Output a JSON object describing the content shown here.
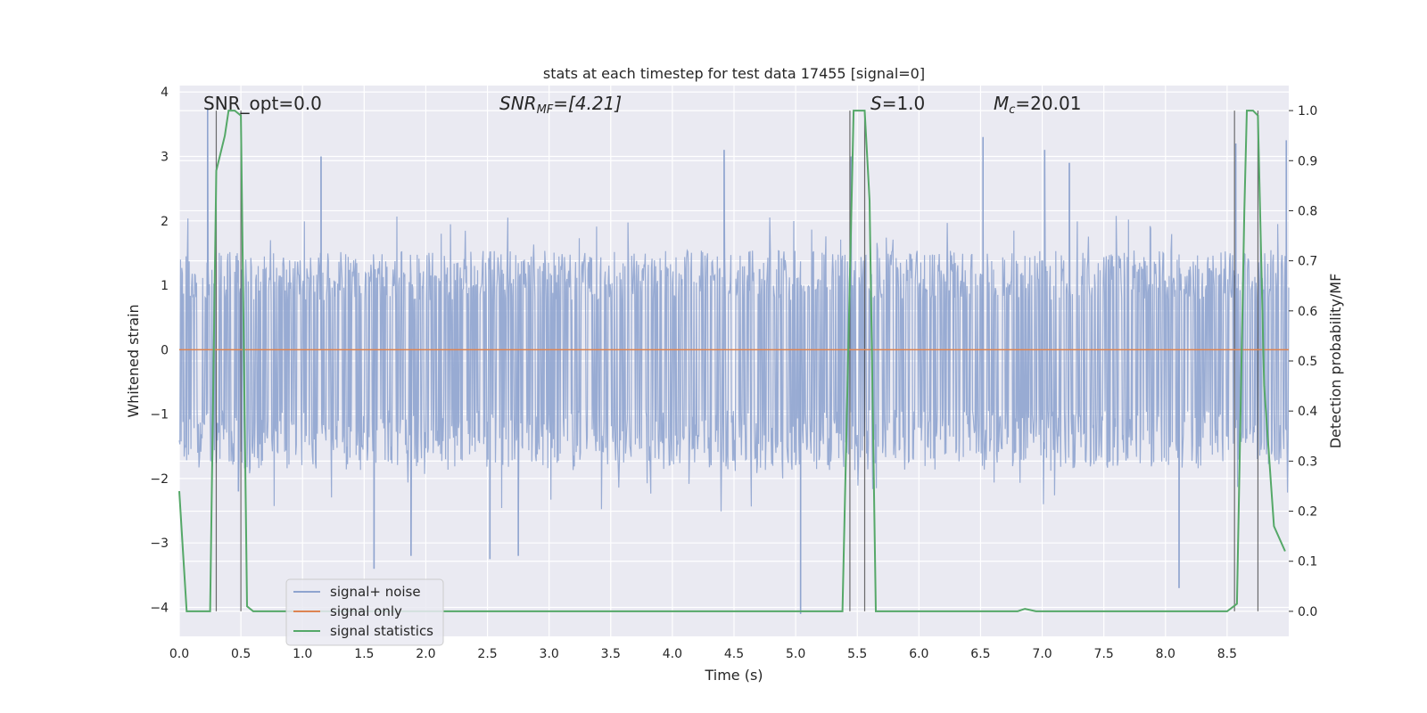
{
  "chart_data": {
    "type": "line",
    "title": "stats at each timestep for test data 17455 [signal=0]",
    "xlabel": "Time (s)",
    "ylabel": "Whitened strain",
    "ylabel_right": "Detection probability/MF",
    "xlim": [
      0.0,
      9.0
    ],
    "ylim_left": [
      -4.45,
      4.1
    ],
    "ylim_right": [
      -0.05,
      1.05
    ],
    "x_ticks": [
      "0.0",
      "0.5",
      "1.0",
      "1.5",
      "2.0",
      "2.5",
      "3.0",
      "3.5",
      "4.0",
      "4.5",
      "5.0",
      "5.5",
      "6.0",
      "6.5",
      "7.0",
      "7.5",
      "8.0",
      "8.5"
    ],
    "y_left_ticks": [
      "4",
      "3",
      "2",
      "1",
      "0",
      "−1",
      "−2",
      "−3",
      "−4"
    ],
    "y_right_ticks": [
      "1.0",
      "0.9",
      "0.8",
      "0.7",
      "0.6",
      "0.5",
      "0.4",
      "0.3",
      "0.2",
      "0.1",
      "0.0"
    ],
    "grid": true,
    "legend_position": "lower-left",
    "annotations": {
      "snr_opt": "SNR_opt=0.0",
      "snr_mf_symbol": "SNR",
      "snr_mf_sub": "MF",
      "snr_mf_value": "=[4.21]",
      "s_symbol": "S",
      "s_value": "=1.0",
      "mc_symbol": "M",
      "mc_sub": "c",
      "mc_value": "=20.01"
    },
    "series": [
      {
        "name": "signal+ noise",
        "color": "#8fa4cf",
        "axis": "left",
        "description_free": true,
        "x_range": [
          0.0,
          9.0
        ],
        "typical_band": [
          -1.7,
          1.4
        ],
        "peaks": [
          {
            "x": 0.23,
            "y": 3.75
          },
          {
            "x": 0.48,
            "y": -2.2
          },
          {
            "x": 1.15,
            "y": 3.0
          },
          {
            "x": 1.58,
            "y": -3.4
          },
          {
            "x": 1.88,
            "y": -3.2
          },
          {
            "x": 2.52,
            "y": -3.25
          },
          {
            "x": 2.75,
            "y": -3.2
          },
          {
            "x": 4.42,
            "y": 3.1
          },
          {
            "x": 5.04,
            "y": -4.1
          },
          {
            "x": 5.45,
            "y": 3.0
          },
          {
            "x": 6.52,
            "y": 3.3
          },
          {
            "x": 7.02,
            "y": 3.1
          },
          {
            "x": 7.22,
            "y": 2.9
          },
          {
            "x": 8.11,
            "y": -3.7
          },
          {
            "x": 8.57,
            "y": 3.2
          },
          {
            "x": 8.98,
            "y": 3.25
          }
        ]
      },
      {
        "name": "signal only",
        "color": "#dd8452",
        "axis": "left",
        "x": [
          0.0,
          9.0
        ],
        "y": [
          0.0,
          0.0
        ]
      },
      {
        "name": "signal statistics",
        "color": "#55a868",
        "axis": "right",
        "x": [
          0.0,
          0.06,
          0.25,
          0.3,
          0.37,
          0.4,
          0.45,
          0.5,
          0.55,
          0.6,
          5.0,
          5.38,
          5.47,
          5.52,
          5.56,
          5.6,
          5.65,
          5.7,
          6.8,
          6.86,
          6.95,
          8.5,
          8.58,
          8.64,
          8.66,
          8.71,
          8.75,
          8.8,
          8.88,
          8.97
        ],
        "y": [
          0.24,
          0.0,
          0.0,
          0.88,
          0.95,
          1.0,
          1.0,
          0.99,
          0.01,
          0.0,
          0.0,
          0.0,
          1.0,
          1.0,
          1.0,
          0.82,
          0.0,
          0.0,
          0.0,
          0.005,
          0.0,
          0.0,
          0.015,
          0.8,
          1.0,
          1.0,
          0.99,
          0.45,
          0.17,
          0.12
        ]
      }
    ],
    "vertical_markers": [
      0.3,
      0.5,
      5.44,
      5.56,
      8.56,
      8.75
    ]
  }
}
